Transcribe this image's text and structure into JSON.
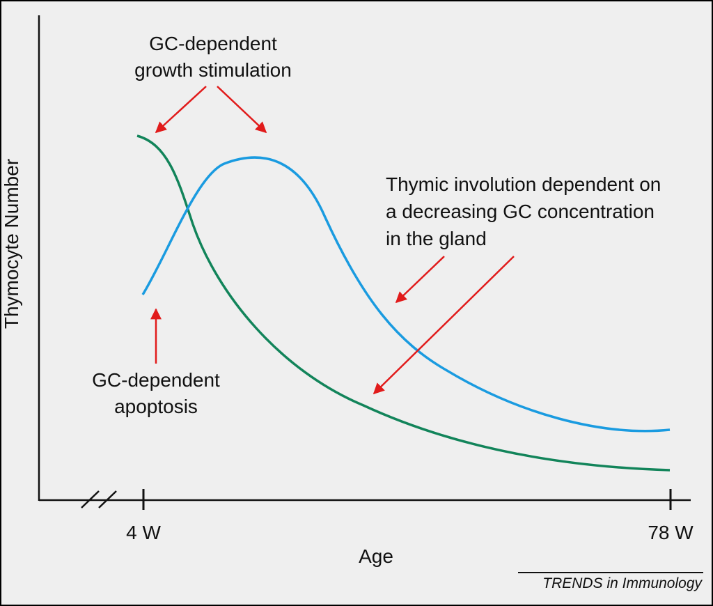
{
  "figure": {
    "ylabel": "Thymocyte Number",
    "xlabel": "Age",
    "ticks": [
      "4 W",
      "78 W"
    ],
    "credit": "TRENDS in Immunology"
  },
  "annotations": {
    "growth": [
      "GC-dependent",
      "growth stimulation"
    ],
    "apoptosis": [
      "GC-dependent",
      "apoptosis"
    ],
    "involution": [
      "Thymic involution dependent on",
      "a decreasing GC concentration",
      "in the gland"
    ]
  },
  "colors": {
    "background": "#efefef",
    "axis": "#111111",
    "blue_curve": "#1a9be0",
    "green_curve": "#12845a",
    "arrow": "#e11b1b"
  }
}
